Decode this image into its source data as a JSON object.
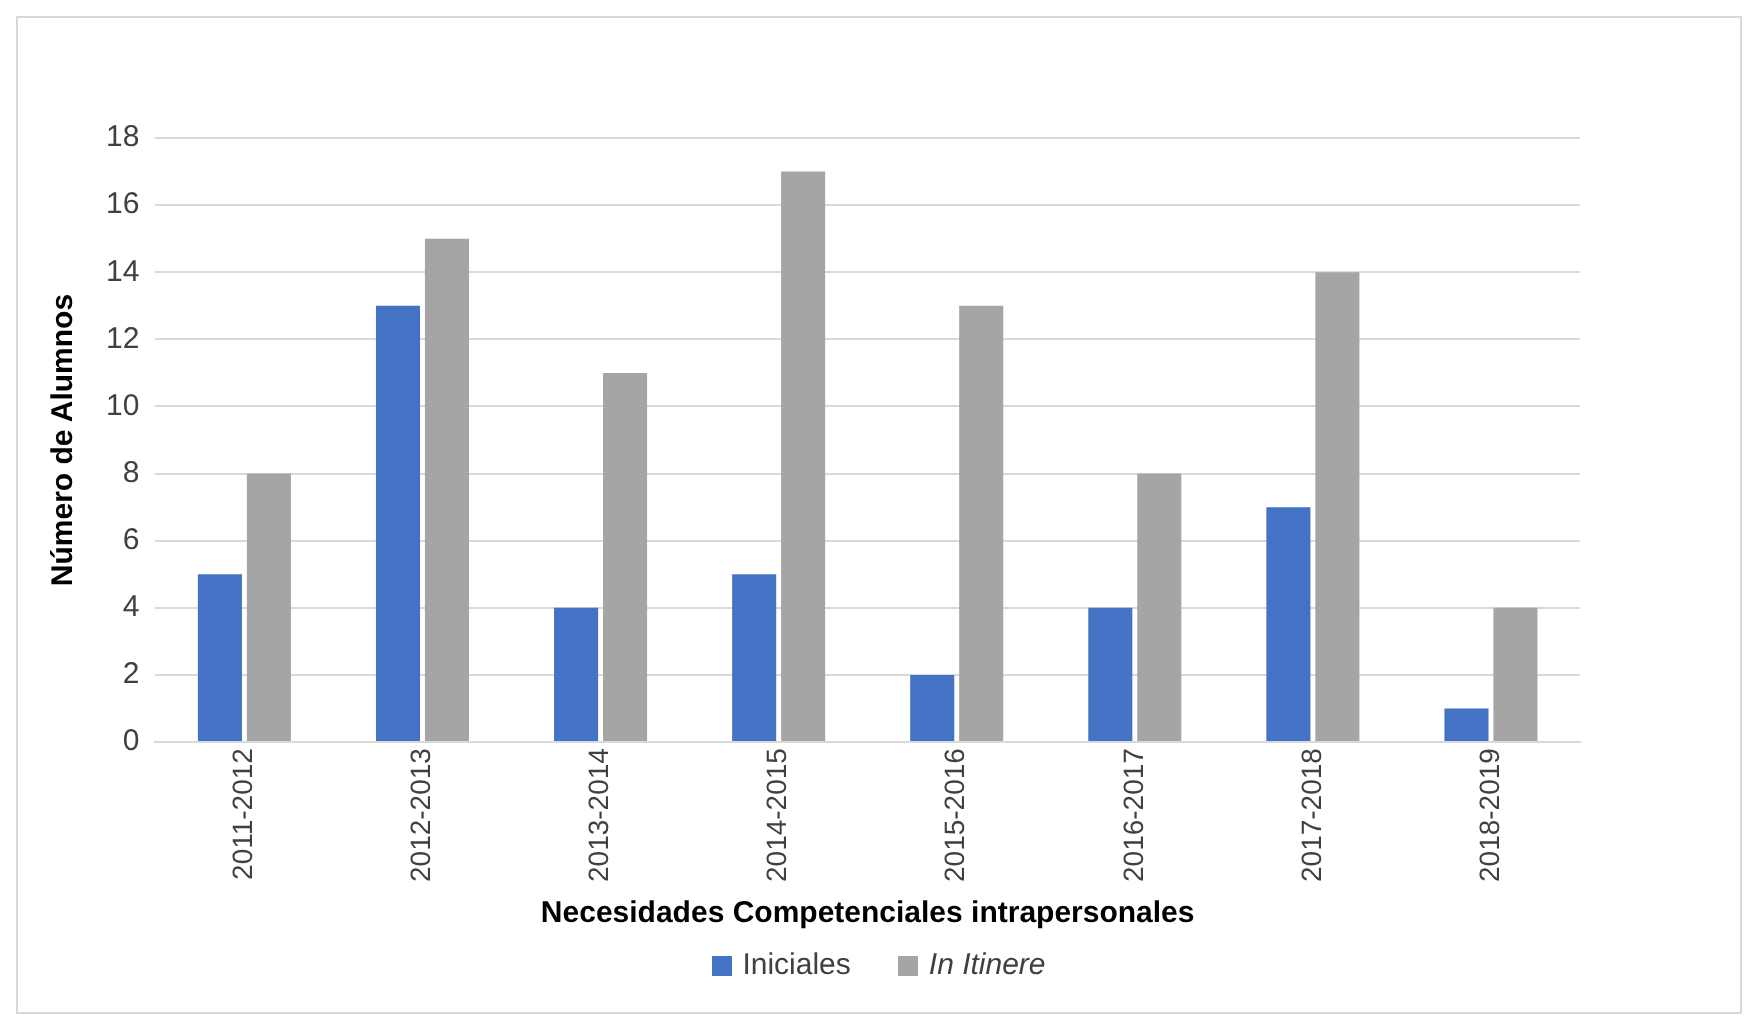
{
  "chart_data": {
    "type": "bar",
    "xlabel": "Necesidades Competenciales intrapersonales",
    "ylabel": "Número de Alumnos",
    "categories": [
      "2011-2012",
      "2012-2013",
      "2013-2014",
      "2014-2015",
      "2015-2016",
      "2016-2017",
      "2017-2018",
      "2018-2019"
    ],
    "series": [
      {
        "name": "Iniciales",
        "color": "#4472c4",
        "values": [
          5,
          13,
          4,
          5,
          2,
          4,
          7,
          1
        ]
      },
      {
        "name": "In Itinere",
        "color": "#a5a5a5",
        "values": [
          8,
          15,
          11,
          17,
          13,
          8,
          14,
          4
        ]
      }
    ],
    "ylim": [
      0,
      18
    ],
    "yticks": [
      0,
      2,
      4,
      6,
      8,
      10,
      12,
      14,
      16,
      18
    ],
    "grid": "y",
    "legend": "bottom"
  }
}
